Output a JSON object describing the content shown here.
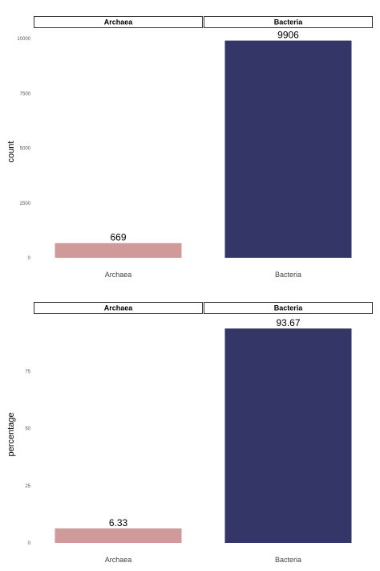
{
  "colors": {
    "Archaea": "#d09a9a",
    "Bacteria": "#333666"
  },
  "chart_data": [
    {
      "type": "bar",
      "facets": [
        "Archaea",
        "Bacteria"
      ],
      "categories": [
        "Archaea",
        "Bacteria"
      ],
      "values": [
        669,
        9906
      ],
      "value_labels": [
        "669",
        "9906"
      ],
      "xlabel": "",
      "ylabel": "count",
      "ylim": [
        0,
        10000
      ],
      "yticks": [
        0,
        2500,
        5000,
        7500,
        10000
      ],
      "ytick_labels": [
        "0",
        "2500",
        "5000",
        "7500",
        "10000"
      ],
      "grid": false
    },
    {
      "type": "bar",
      "facets": [
        "Archaea",
        "Bacteria"
      ],
      "categories": [
        "Archaea",
        "Bacteria"
      ],
      "values": [
        6.33,
        93.67
      ],
      "value_labels": [
        "6.33",
        "93.67"
      ],
      "xlabel": "",
      "ylabel": "percentage",
      "ylim": [
        0,
        100
      ],
      "yticks": [
        0,
        25,
        50,
        75
      ],
      "ytick_labels": [
        "0",
        "25",
        "50",
        "75"
      ],
      "grid": false
    }
  ]
}
